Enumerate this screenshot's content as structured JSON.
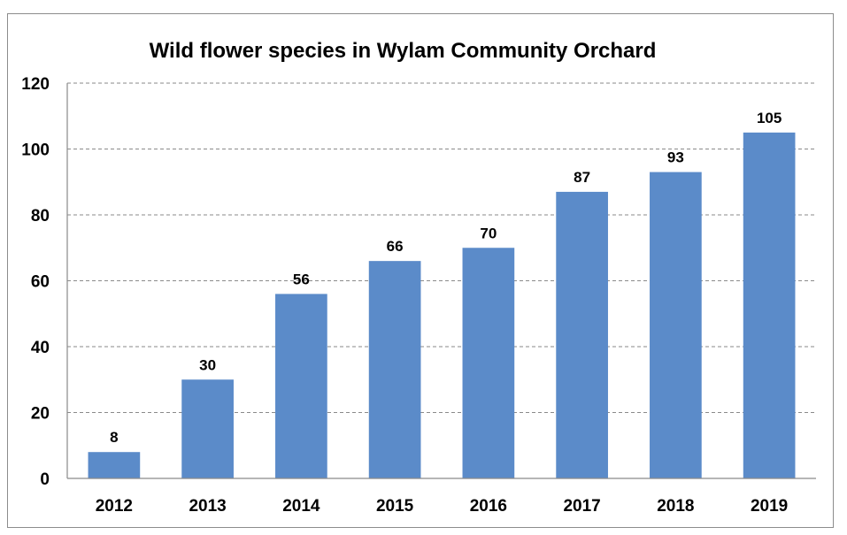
{
  "chart_data": {
    "type": "bar",
    "title": "Wild flower species in Wylam Community Orchard",
    "xlabel": "",
    "ylabel": "",
    "categories": [
      "2012",
      "2013",
      "2014",
      "2015",
      "2016",
      "2017",
      "2018",
      "2019"
    ],
    "values": [
      8,
      30,
      56,
      66,
      70,
      87,
      93,
      105
    ],
    "ylim": [
      0,
      120
    ],
    "yticks": [
      0,
      20,
      40,
      60,
      80,
      100,
      120
    ],
    "grid": true,
    "grid_style": "dashed",
    "legend": "none",
    "data_labels": true,
    "bar_color": "#5b8bc9"
  }
}
